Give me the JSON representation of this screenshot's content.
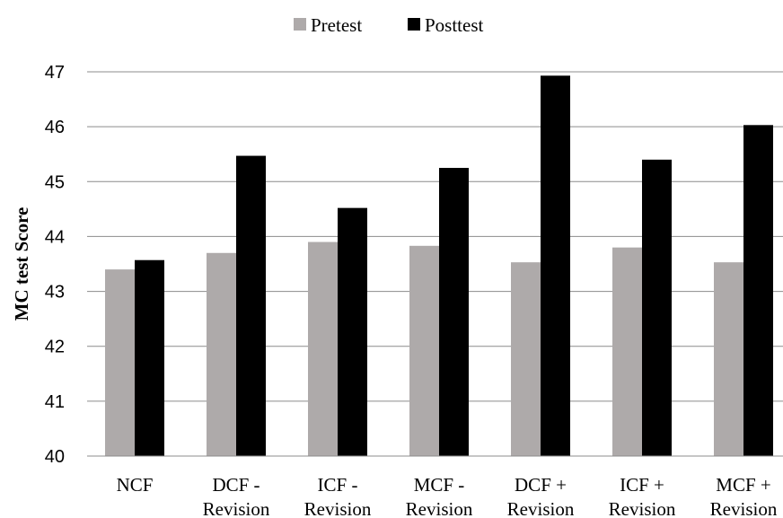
{
  "chart_data": {
    "type": "bar",
    "title": "",
    "xlabel": "",
    "ylabel": "MC test Score",
    "ylim": [
      40,
      47
    ],
    "yticks": [
      "40",
      "41",
      "42",
      "43",
      "44",
      "45",
      "46",
      "47"
    ],
    "grid": true,
    "legend_position": "top-center",
    "categories": [
      [
        "NCF"
      ],
      [
        "DCF -",
        "Revision"
      ],
      [
        "ICF -",
        "Revision"
      ],
      [
        "MCF -",
        "Revision"
      ],
      [
        "DCF +",
        "Revision"
      ],
      [
        "ICF +",
        "Revision"
      ],
      [
        "MCF +",
        "Revision"
      ]
    ],
    "series": [
      {
        "name": "Pretest",
        "color": "#aeaaaa",
        "values": [
          43.4,
          43.7,
          43.9,
          43.83,
          43.53,
          43.8,
          43.53
        ]
      },
      {
        "name": "Posttest",
        "color": "#000000",
        "values": [
          43.57,
          45.47,
          44.52,
          45.25,
          46.93,
          45.4,
          46.03
        ]
      }
    ]
  }
}
